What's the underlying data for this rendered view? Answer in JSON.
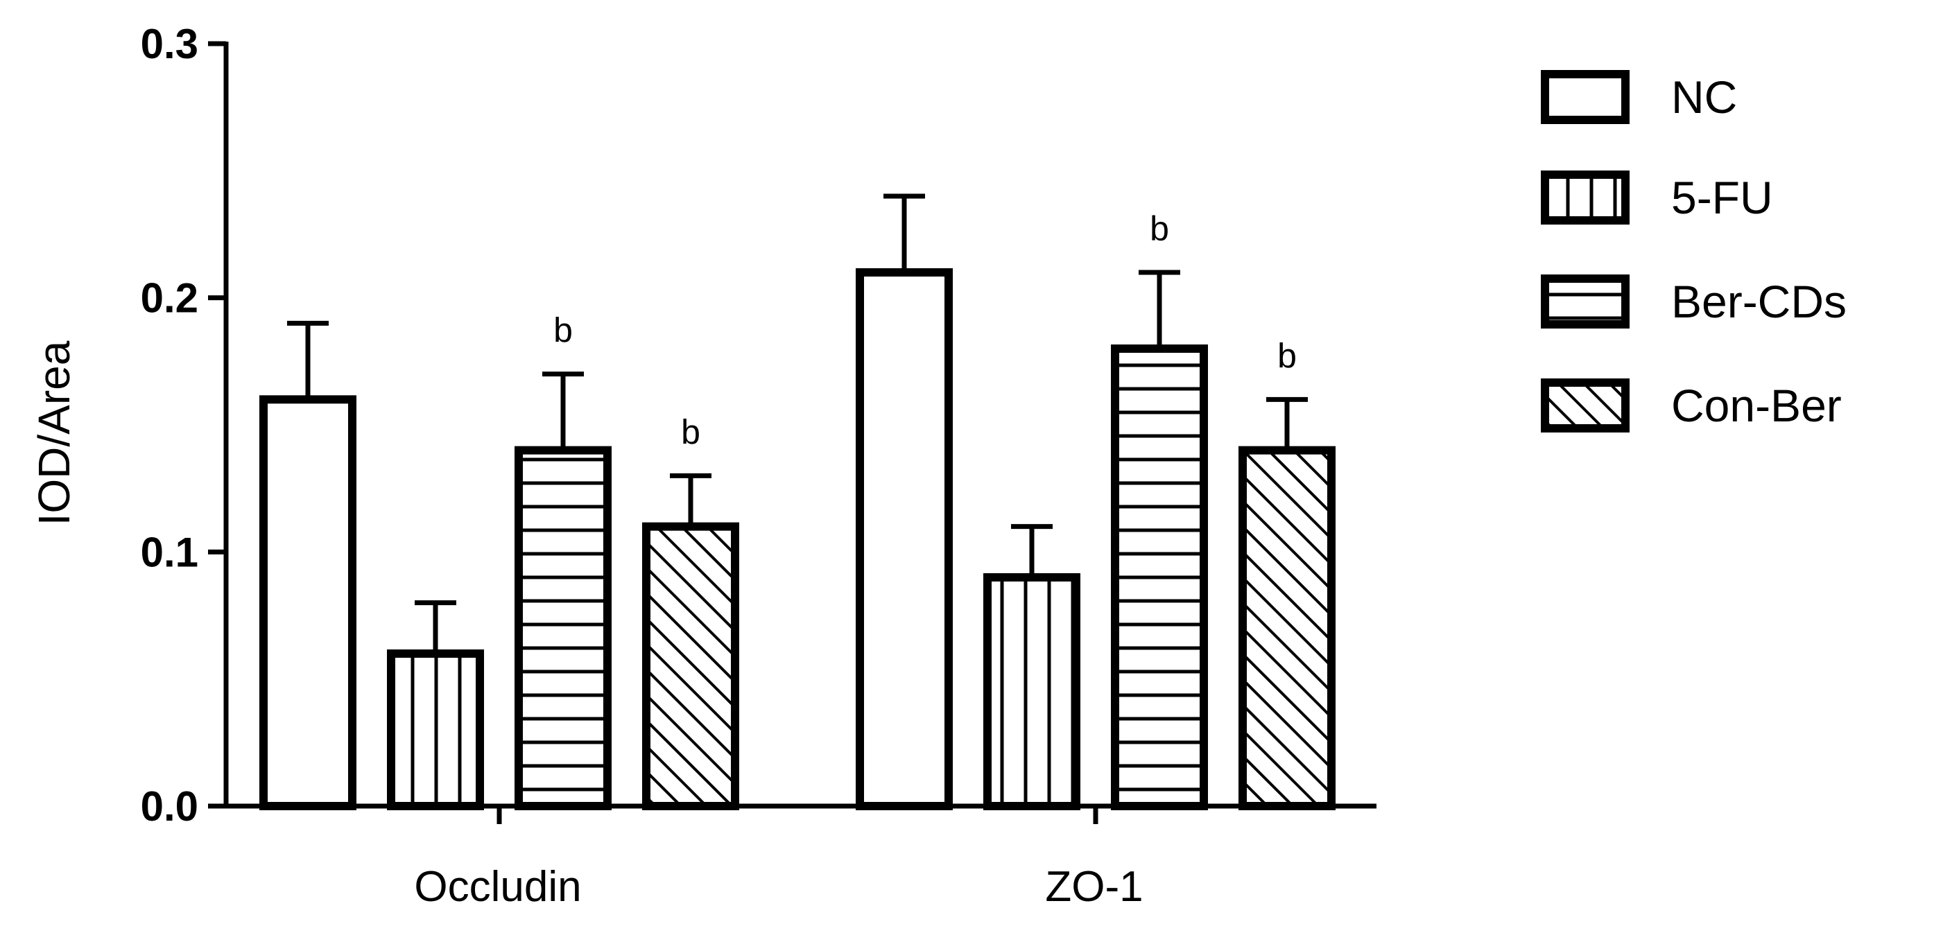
{
  "chart_data": {
    "type": "bar",
    "categories": [
      "Occludin",
      "ZO-1"
    ],
    "ylabel": "IOD/Area",
    "xlabel": "",
    "ylim": [
      0,
      0.3
    ],
    "yticks": [
      "0.0",
      "0.1",
      "0.2",
      "0.3"
    ],
    "ytick_values": [
      0,
      0.1,
      0.2,
      0.3
    ],
    "legend_position": "right",
    "series": [
      {
        "name": "NC",
        "pattern": "open",
        "values": [
          0.16,
          0.21
        ],
        "errors": [
          0.03,
          0.03
        ],
        "sig": [
          "",
          ""
        ]
      },
      {
        "name": "5-FU",
        "pattern": "vertical",
        "values": [
          0.06,
          0.09
        ],
        "errors": [
          0.02,
          0.02
        ],
        "sig": [
          "",
          ""
        ]
      },
      {
        "name": "Ber-CDs",
        "pattern": "horizontal",
        "values": [
          0.14,
          0.18
        ],
        "errors": [
          0.03,
          0.03
        ],
        "sig": [
          "b",
          "b"
        ]
      },
      {
        "name": "Con-Ber",
        "pattern": "diagonal",
        "values": [
          0.11,
          0.14
        ],
        "errors": [
          0.02,
          0.02
        ],
        "sig": [
          "b",
          "b"
        ]
      }
    ],
    "colors": {
      "stroke": "#000000",
      "fill": "#ffffff"
    }
  }
}
